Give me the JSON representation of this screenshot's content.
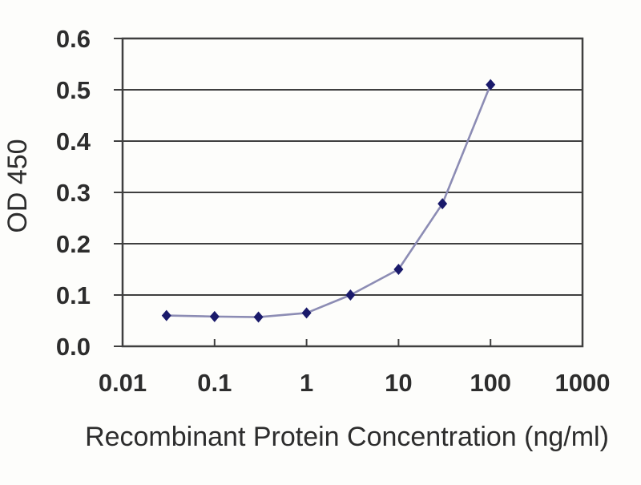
{
  "chart_data": {
    "type": "line",
    "x": [
      0.03,
      0.1,
      0.3,
      1,
      3,
      10,
      30,
      100
    ],
    "y": [
      0.06,
      0.058,
      0.057,
      0.065,
      0.1,
      0.15,
      0.278,
      0.51
    ],
    "xlabel": "Recombinant Protein Concentration (ng/ml)",
    "ylabel": "OD 450",
    "x_scale": "log",
    "xlim": [
      0.01,
      1000
    ],
    "ylim": [
      0,
      0.6
    ],
    "x_ticks": [
      0.01,
      0.1,
      1,
      10,
      100,
      1000
    ],
    "x_tick_labels": [
      "0.01",
      "0.1",
      "1",
      "10",
      "100",
      "1000"
    ],
    "y_ticks": [
      0,
      0.1,
      0.2,
      0.3,
      0.4,
      0.5,
      0.6
    ],
    "y_tick_labels": [
      "0.0",
      "0.1",
      "0.2",
      "0.3",
      "0.4",
      "0.5",
      "0.6"
    ],
    "grid": "horizontal",
    "legend": "none",
    "marker": "diamond",
    "colors": {
      "line": "#8c8cb4",
      "marker": "#1a1a6b",
      "axis": "#3f3f3f",
      "text": "#2d2d2d",
      "background": "#fdfdfb"
    }
  }
}
